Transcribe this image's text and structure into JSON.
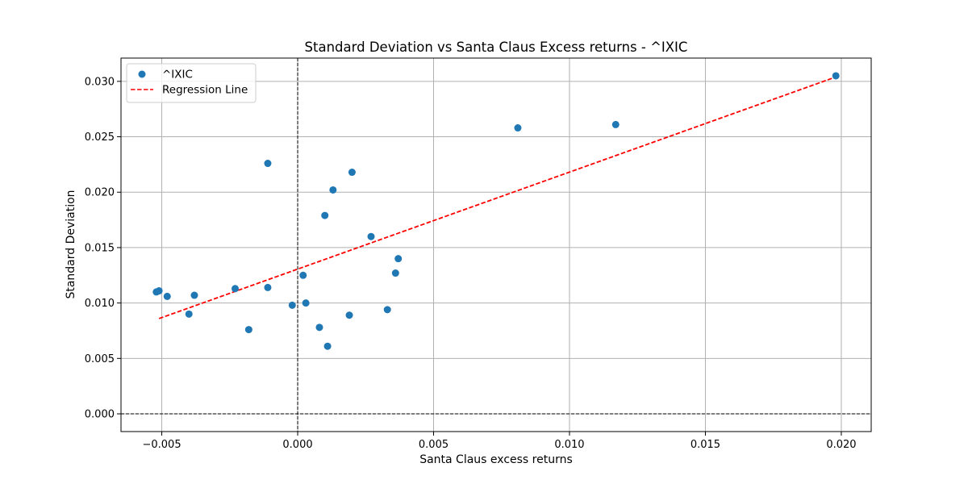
{
  "chart_data": {
    "type": "scatter",
    "title": "Standard Deviation vs Santa Claus Excess returns - ^IXIC",
    "xlabel": "Santa Claus excess returns",
    "ylabel": "Standard Deviation",
    "xlim": [
      -0.0065,
      0.0211
    ],
    "ylim": [
      -0.0016,
      0.0321
    ],
    "xticks": [
      -0.005,
      0.0,
      0.005,
      0.01,
      0.015,
      0.02
    ],
    "xtick_labels": [
      "−0.005",
      "0.000",
      "0.005",
      "0.010",
      "0.015",
      "0.020"
    ],
    "yticks": [
      0.0,
      0.005,
      0.01,
      0.015,
      0.02,
      0.025,
      0.03
    ],
    "ytick_labels": [
      "0.000",
      "0.005",
      "0.010",
      "0.015",
      "0.020",
      "0.025",
      "0.030"
    ],
    "grid": true,
    "legend_position": "top-left",
    "reference_lines": {
      "x": 0,
      "y": 0,
      "color": "#000000",
      "style": "dashed"
    },
    "series": [
      {
        "name": "^IXIC",
        "kind": "scatter",
        "color": "#1f77b4",
        "points": [
          [
            -0.0052,
            0.011
          ],
          [
            -0.0051,
            0.0111
          ],
          [
            -0.0048,
            0.0106
          ],
          [
            -0.004,
            0.009
          ],
          [
            -0.0038,
            0.0107
          ],
          [
            -0.0023,
            0.0113
          ],
          [
            -0.0018,
            0.0076
          ],
          [
            -0.0011,
            0.0226
          ],
          [
            -0.0011,
            0.0114
          ],
          [
            -0.0002,
            0.0098
          ],
          [
            0.0002,
            0.0125
          ],
          [
            0.0003,
            0.01
          ],
          [
            0.0008,
            0.0078
          ],
          [
            0.001,
            0.0179
          ],
          [
            0.0011,
            0.0061
          ],
          [
            0.0013,
            0.0202
          ],
          [
            0.0019,
            0.0089
          ],
          [
            0.002,
            0.0218
          ],
          [
            0.0027,
            0.016
          ],
          [
            0.0033,
            0.0094
          ],
          [
            0.0036,
            0.0127
          ],
          [
            0.0037,
            0.014
          ],
          [
            0.0081,
            0.0258
          ],
          [
            0.0117,
            0.0261
          ],
          [
            0.0198,
            0.0305
          ]
        ]
      },
      {
        "name": "Regression Line",
        "kind": "line",
        "color": "#ff0000",
        "style": "dashed",
        "points": [
          [
            -0.0051,
            0.0086
          ],
          [
            0.0117,
            0.0233
          ],
          [
            0.0198,
            0.0304
          ]
        ]
      }
    ]
  }
}
